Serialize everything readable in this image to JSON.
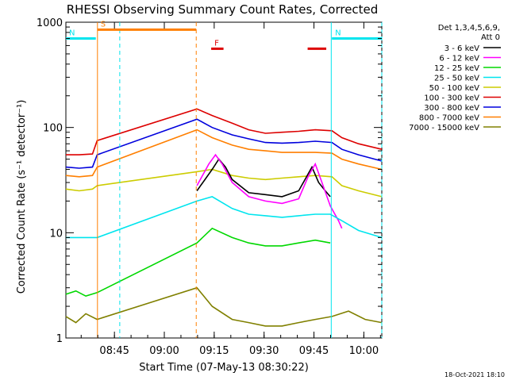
{
  "chart_data": {
    "type": "line",
    "title": "RHESSI Observing Summary Count Rates, Corrected",
    "xlabel": "Start Time (07-May-13 08:30:22)",
    "ylabel": "Corrected Count Rate (s⁻¹ detector⁻¹)",
    "y_scale": "log",
    "ylim": [
      1,
      1000
    ],
    "xlim_minutes_after_start": [
      0,
      95
    ],
    "x_ticks": [
      {
        "label": "08:45",
        "t": 14.6
      },
      {
        "label": "09:00",
        "t": 29.6
      },
      {
        "label": "09:15",
        "t": 44.6
      },
      {
        "label": "09:30",
        "t": 59.6
      },
      {
        "label": "09:45",
        "t": 74.6
      },
      {
        "label": "10:00",
        "t": 89.6
      }
    ],
    "y_ticks": [
      {
        "label": "1",
        "v": 1
      },
      {
        "label": "10",
        "v": 10
      },
      {
        "label": "100",
        "v": 100
      },
      {
        "label": "1000",
        "v": 1000
      }
    ],
    "legend": {
      "placement": "right",
      "header": [
        "Det 1,3,4,5,6,9,",
        "Att 0"
      ],
      "entries": [
        {
          "label": "3 - 6 keV",
          "color": "#000000"
        },
        {
          "label": "6 - 12 keV",
          "color": "#ff00ff"
        },
        {
          "label": "12 - 25 keV",
          "color": "#00d800"
        },
        {
          "label": "25 - 50 keV",
          "color": "#00e5ee"
        },
        {
          "label": "50 - 100 keV",
          "color": "#cccc00"
        },
        {
          "label": "100 - 300 keV",
          "color": "#dd0000"
        },
        {
          "label": "300 - 800 keV",
          "color": "#0000dd"
        },
        {
          "label": "800 - 7000 keV",
          "color": "#ff7f00"
        },
        {
          "label": "7000 - 15000 keV",
          "color": "#808000"
        }
      ]
    },
    "flags": [
      {
        "label": "S",
        "color": "#ff7f00",
        "t_start": 9.5,
        "t_end": 39.2,
        "level": 850
      },
      {
        "label": "N",
        "color": "#00e5ee",
        "t_start": 0,
        "t_end": 9,
        "level": 700
      },
      {
        "label": "N",
        "color": "#00e5ee",
        "t_start": 80,
        "t_end": 95,
        "level": 700
      },
      {
        "label": "F",
        "color": "#dd0000",
        "t_start": 43.7,
        "t_end": 47.4,
        "level": 560
      },
      {
        "label": "",
        "color": "#dd0000",
        "t_start": 72.7,
        "t_end": 78.3,
        "level": 560
      }
    ],
    "event_lines": [
      {
        "t": 9.5,
        "color": "#ff7f00",
        "style": "solid"
      },
      {
        "t": 16.2,
        "color": "#00e5ee",
        "style": "dashed"
      },
      {
        "t": 39.2,
        "color": "#ff7f00",
        "style": "dashed"
      },
      {
        "t": 79.8,
        "color": "#00e5ee",
        "style": "solid"
      },
      {
        "t": 95,
        "color": "#00e5ee",
        "style": "dashed"
      }
    ],
    "series": [
      {
        "name": "100 - 300 keV",
        "color": "#dd0000",
        "points": [
          [
            0,
            55
          ],
          [
            4,
            55
          ],
          [
            8,
            56
          ],
          [
            9.4,
            75
          ],
          [
            39.4,
            150
          ],
          [
            44,
            130
          ],
          [
            50,
            110
          ],
          [
            55,
            95
          ],
          [
            60,
            88
          ],
          [
            65,
            90
          ],
          [
            70,
            92
          ],
          [
            75,
            95
          ],
          [
            80,
            93
          ],
          [
            83,
            80
          ],
          [
            88,
            70
          ],
          [
            95,
            62
          ]
        ]
      },
      {
        "name": "300 - 800 keV",
        "color": "#0000dd",
        "points": [
          [
            0,
            42
          ],
          [
            4,
            41
          ],
          [
            8,
            42
          ],
          [
            9.4,
            55
          ],
          [
            39.4,
            120
          ],
          [
            44,
            100
          ],
          [
            50,
            85
          ],
          [
            55,
            78
          ],
          [
            60,
            72
          ],
          [
            65,
            71
          ],
          [
            70,
            72
          ],
          [
            75,
            74
          ],
          [
            80,
            72
          ],
          [
            83,
            62
          ],
          [
            88,
            55
          ],
          [
            95,
            48
          ]
        ]
      },
      {
        "name": "800 - 7000 keV",
        "color": "#ff7f00",
        "points": [
          [
            0,
            35
          ],
          [
            4,
            34
          ],
          [
            8,
            35
          ],
          [
            9.4,
            42
          ],
          [
            39.4,
            95
          ],
          [
            44,
            80
          ],
          [
            50,
            68
          ],
          [
            55,
            62
          ],
          [
            60,
            60
          ],
          [
            65,
            58
          ],
          [
            70,
            58
          ],
          [
            75,
            58
          ],
          [
            80,
            57
          ],
          [
            83,
            50
          ],
          [
            88,
            45
          ],
          [
            95,
            40
          ]
        ]
      },
      {
        "name": "50 - 100 keV",
        "color": "#cccc00",
        "points": [
          [
            0,
            26
          ],
          [
            4,
            25
          ],
          [
            8,
            26
          ],
          [
            9.4,
            28
          ],
          [
            39.4,
            38
          ],
          [
            44,
            40
          ],
          [
            50,
            35
          ],
          [
            55,
            33
          ],
          [
            60,
            32
          ],
          [
            65,
            33
          ],
          [
            70,
            34
          ],
          [
            75,
            35
          ],
          [
            80,
            34
          ],
          [
            83,
            28
          ],
          [
            88,
            25
          ],
          [
            95,
            22
          ]
        ]
      },
      {
        "name": "3 - 6 keV",
        "color": "#000000",
        "points": [
          [
            39.4,
            25
          ],
          [
            44,
            40
          ],
          [
            46,
            50
          ],
          [
            48,
            42
          ],
          [
            50,
            32
          ],
          [
            55,
            24
          ],
          [
            60,
            23
          ],
          [
            65,
            22
          ],
          [
            70,
            25
          ],
          [
            74,
            42
          ],
          [
            76,
            30
          ],
          [
            78,
            25
          ],
          [
            79.5,
            22
          ]
        ]
      },
      {
        "name": "6 - 12 keV",
        "color": "#ff00ff",
        "points": [
          [
            39.4,
            28
          ],
          [
            43,
            45
          ],
          [
            45,
            55
          ],
          [
            47,
            45
          ],
          [
            50,
            30
          ],
          [
            55,
            22
          ],
          [
            60,
            20
          ],
          [
            65,
            19
          ],
          [
            70,
            21
          ],
          [
            73,
            35
          ],
          [
            75,
            45
          ],
          [
            77,
            30
          ],
          [
            79.5,
            18
          ],
          [
            82,
            13
          ],
          [
            83,
            11
          ]
        ]
      },
      {
        "name": "25 - 50 keV",
        "color": "#00e5ee",
        "points": [
          [
            0,
            9
          ],
          [
            4,
            9
          ],
          [
            8,
            9
          ],
          [
            9.4,
            9
          ],
          [
            39.4,
            20
          ],
          [
            44,
            22
          ],
          [
            50,
            17
          ],
          [
            55,
            15
          ],
          [
            60,
            14.5
          ],
          [
            65,
            14
          ],
          [
            70,
            14.5
          ],
          [
            75,
            15
          ],
          [
            79.5,
            15
          ],
          [
            83,
            13
          ],
          [
            88,
            10.5
          ],
          [
            95,
            9
          ]
        ]
      },
      {
        "name": "12 - 25 keV",
        "color": "#00d800",
        "points": [
          [
            0,
            2.6
          ],
          [
            3,
            2.8
          ],
          [
            6,
            2.5
          ],
          [
            9.4,
            2.7
          ],
          [
            39.4,
            8
          ],
          [
            44,
            11
          ],
          [
            50,
            9
          ],
          [
            55,
            8
          ],
          [
            60,
            7.5
          ],
          [
            65,
            7.5
          ],
          [
            70,
            8
          ],
          [
            75,
            8.5
          ],
          [
            79.5,
            8
          ]
        ]
      },
      {
        "name": "7000 - 15000 keV",
        "color": "#808000",
        "points": [
          [
            0,
            1.6
          ],
          [
            3,
            1.4
          ],
          [
            6,
            1.7
          ],
          [
            9.4,
            1.5
          ],
          [
            39.4,
            3
          ],
          [
            44,
            2
          ],
          [
            50,
            1.5
          ],
          [
            55,
            1.4
          ],
          [
            60,
            1.3
          ],
          [
            65,
            1.3
          ],
          [
            70,
            1.4
          ],
          [
            75,
            1.5
          ],
          [
            80,
            1.6
          ],
          [
            85,
            1.8
          ],
          [
            90,
            1.5
          ],
          [
            95,
            1.4
          ]
        ]
      }
    ],
    "timestamp": "18-Oct-2021 18:10"
  }
}
